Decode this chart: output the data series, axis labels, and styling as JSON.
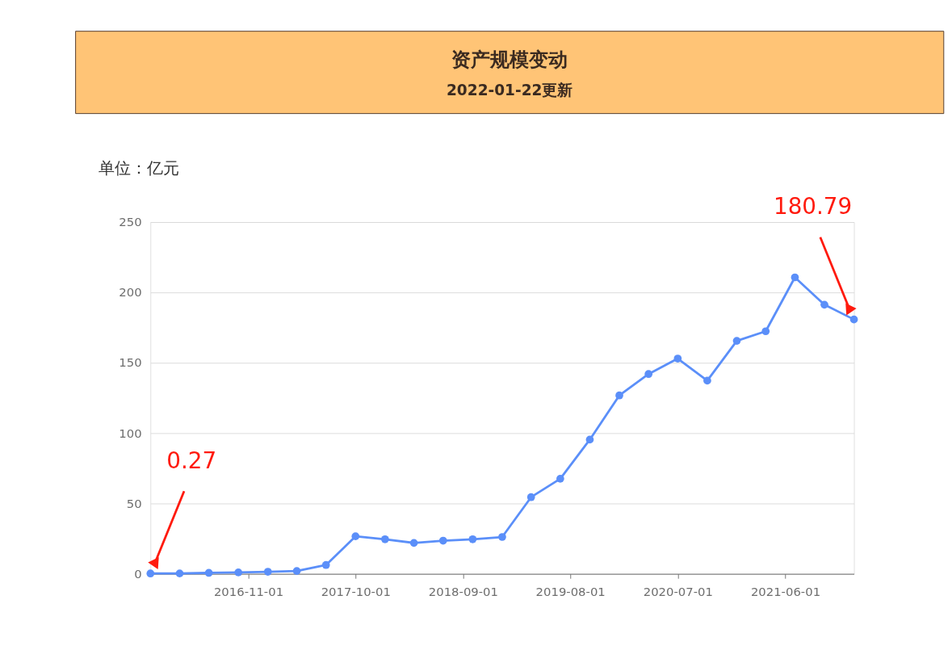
{
  "chart_data": {
    "type": "line",
    "title": "资产规模变动",
    "subtitle": "2022-01-22更新",
    "ylabel": "单位：亿元",
    "x": [
      "2016-01-01",
      "2016-04-01",
      "2016-07-01",
      "2016-10-01",
      "2017-01-01",
      "2017-04-01",
      "2017-07-01",
      "2017-10-01",
      "2018-01-01",
      "2018-04-01",
      "2018-07-01",
      "2018-10-01",
      "2019-01-01",
      "2019-04-01",
      "2019-07-01",
      "2019-10-01",
      "2020-01-01",
      "2020-04-01",
      "2020-07-01",
      "2020-10-01",
      "2021-01-01",
      "2021-04-01",
      "2021-07-01",
      "2021-10-01",
      "2022-01-01"
    ],
    "series": [
      {
        "color": "#5b8ff9",
        "values": [
          0.27,
          0.3,
          0.7,
          1,
          1.5,
          2,
          6.3,
          26.7,
          24.6,
          22,
          23.6,
          24.6,
          26.2,
          54.5,
          67.6,
          95.4,
          126.8,
          142,
          153,
          137.3,
          165.6,
          172.4,
          210.7,
          191.3,
          180.79
        ],
        "value_labels": [
          "0.27",
          null,
          null,
          null,
          null,
          null,
          null,
          null,
          null,
          null,
          null,
          null,
          null,
          null,
          null,
          null,
          null,
          null,
          null,
          null,
          null,
          null,
          null,
          null,
          "180.79"
        ]
      }
    ],
    "xlim": [
      "2016-01-01",
      "2022-01-01"
    ],
    "xticks": [
      "2016-11-01",
      "2017-10-01",
      "2018-09-01",
      "2019-08-01",
      "2020-07-01",
      "2021-06-01"
    ],
    "ylim": [
      0,
      250
    ],
    "yticks": [
      0,
      50,
      100,
      150,
      200,
      250
    ],
    "grid": "y",
    "marker": "circle",
    "line_style": "solid"
  }
}
